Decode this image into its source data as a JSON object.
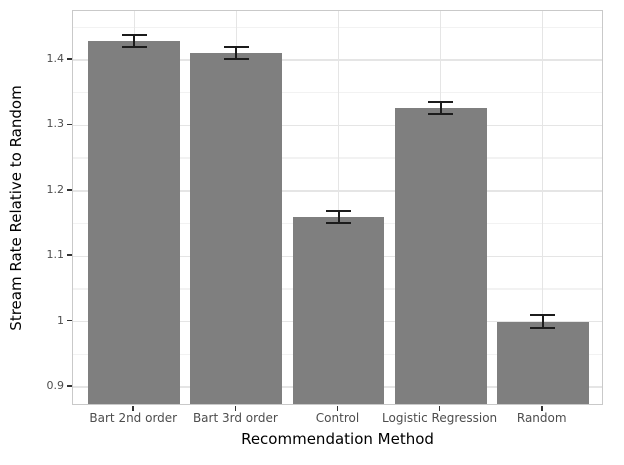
{
  "chart_data": {
    "type": "bar",
    "title": "",
    "xlabel": "Recommendation Method",
    "ylabel": "Stream Rate Relative to Random",
    "categories": [
      "Bart 2nd order",
      "Bart 3rd order",
      "Control",
      "Logistic Regression",
      "Random"
    ],
    "values": [
      1.429,
      1.411,
      1.16,
      1.327,
      1.0
    ],
    "errors": [
      0.009,
      0.009,
      0.009,
      0.009,
      0.01
    ],
    "ylim": [
      0.871,
      1.475
    ],
    "yticks": [
      0.9,
      1.0,
      1.1,
      1.2,
      1.3,
      1.4
    ],
    "ytick_labels": [
      "0.9",
      "1",
      "1.1",
      "1.2",
      "1.3",
      "1.4"
    ],
    "yticks_minor": [
      0.95,
      1.05,
      1.15,
      1.25,
      1.35,
      1.45
    ],
    "grid": "major-and-minor, under bars",
    "legend": "none",
    "bar_width_fraction": 0.9,
    "colors": {
      "bar": "#7f7f7f",
      "error_bar": "#1c1c1c",
      "grid_major": "#e5e5e5",
      "grid_minor": "#f2f2f2",
      "panel_border": "#c9c9c9",
      "panel_background": "#ffffff",
      "figure_background": "#ffffff",
      "tick_label": "#4d4d4d",
      "tick_mark": "#333333",
      "axis_title": "#000000"
    }
  }
}
